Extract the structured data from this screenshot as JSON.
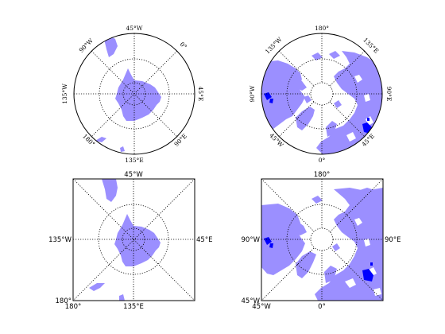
{
  "colors": {
    "land": "#9b8fff",
    "lake": "#0000ff",
    "grid": "#000000",
    "frame": "#000000",
    "background": "#ffffff"
  },
  "panels": [
    {
      "id": "south-polar-round",
      "projection": "south polar stereographic",
      "boundary": "round",
      "labels": {
        "top": "45°W",
        "top_right": "0°",
        "right": "45°E",
        "bottom_right": "90°E",
        "bottom": "135°E",
        "bottom_left": "180°",
        "left": "135°W",
        "top_left": "90°W"
      }
    },
    {
      "id": "north-polar-round",
      "projection": "north polar stereographic",
      "boundary": "round",
      "labels": {
        "top": "180°",
        "top_right": "135°E",
        "right": "90°E",
        "bottom_right": "45°E",
        "bottom": "0°",
        "bottom_left": "45°W",
        "left": "90°W",
        "top_left": "135°W"
      }
    },
    {
      "id": "south-polar-square",
      "projection": "south polar stereographic",
      "boundary": "square",
      "labels": {
        "top": "45°W",
        "right": "45°E",
        "bottom": "135°E",
        "left": "135°W",
        "corner_left": "180°",
        "corner_bottom": "180°"
      }
    },
    {
      "id": "north-polar-square",
      "projection": "north polar stereographic",
      "boundary": "square",
      "labels": {
        "top": "180°",
        "right": "90°E",
        "bottom": "0°",
        "left": "90°W",
        "corner_left": "45°W",
        "corner_bottom": "45°W"
      }
    }
  ]
}
